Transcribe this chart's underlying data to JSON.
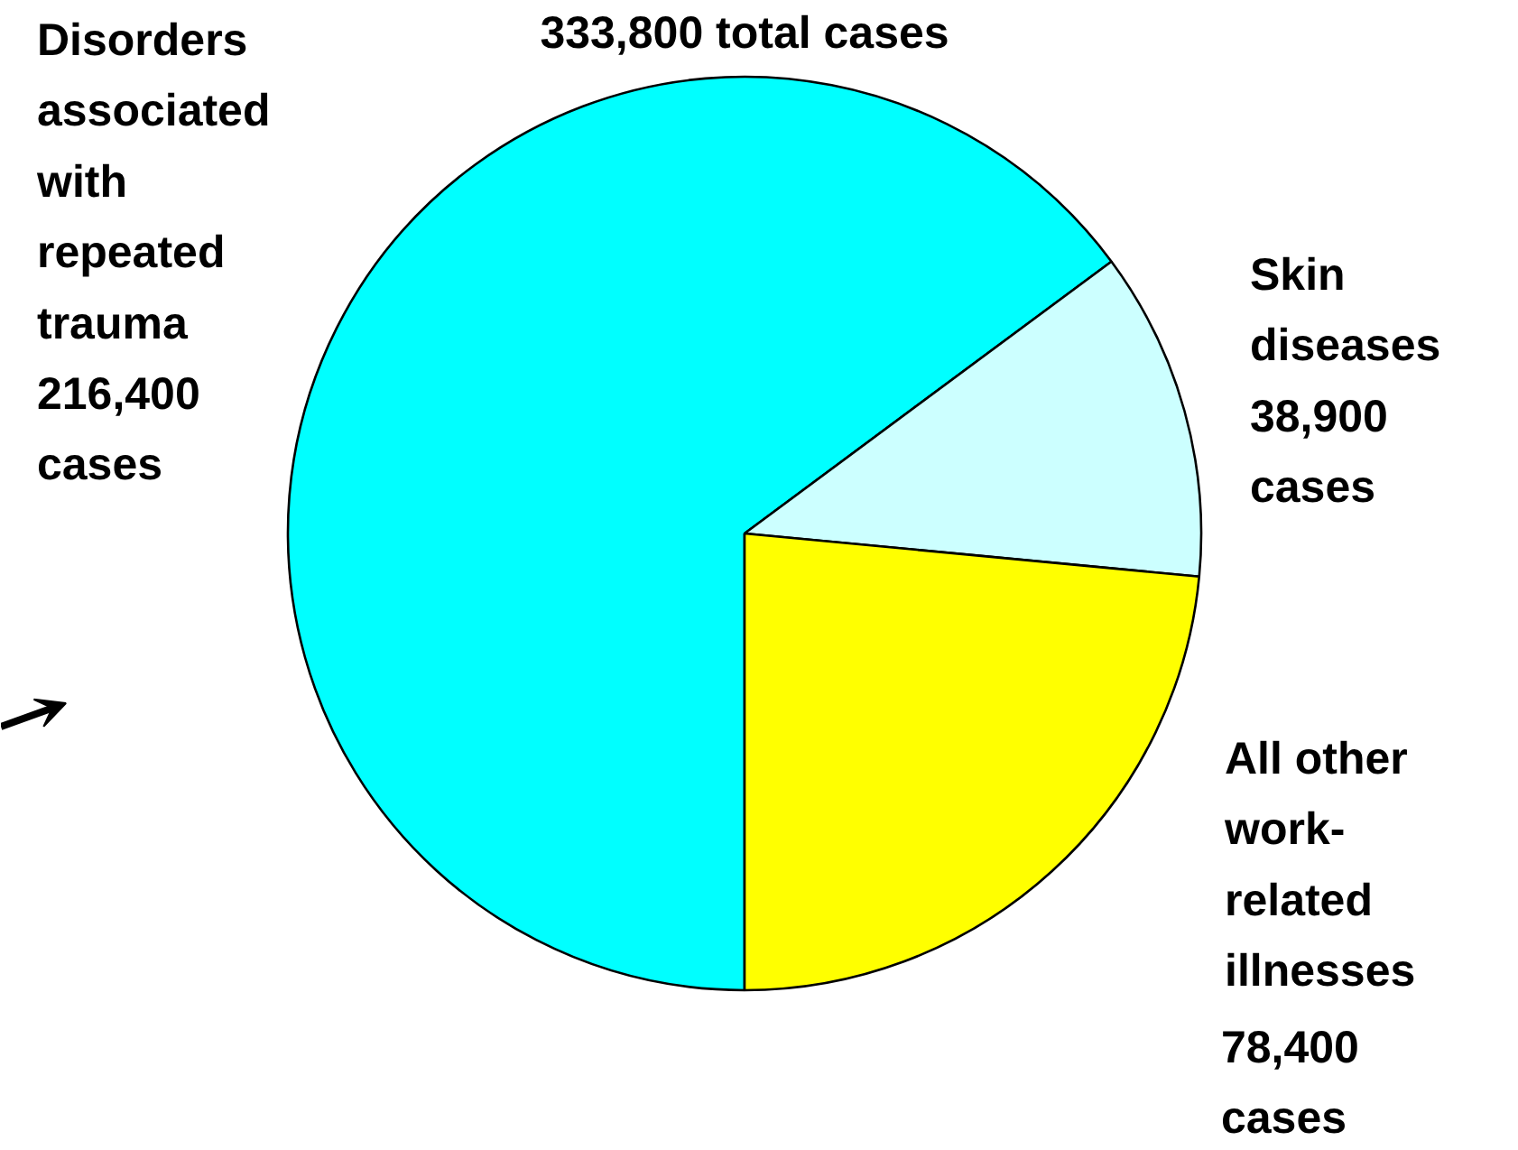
{
  "chart_data": {
    "type": "pie",
    "title": "333,800 total cases",
    "categories": [
      "Disorders associated with repeated trauma",
      "Skin diseases",
      "All other work-related illnesses"
    ],
    "values": [
      216400,
      38900,
      78400
    ],
    "value_labels": [
      "216,400 cases",
      "38,900 cases",
      "78,400 cases"
    ],
    "colors": [
      "#00ffff",
      "#ccffff",
      "#ffff00"
    ]
  }
}
